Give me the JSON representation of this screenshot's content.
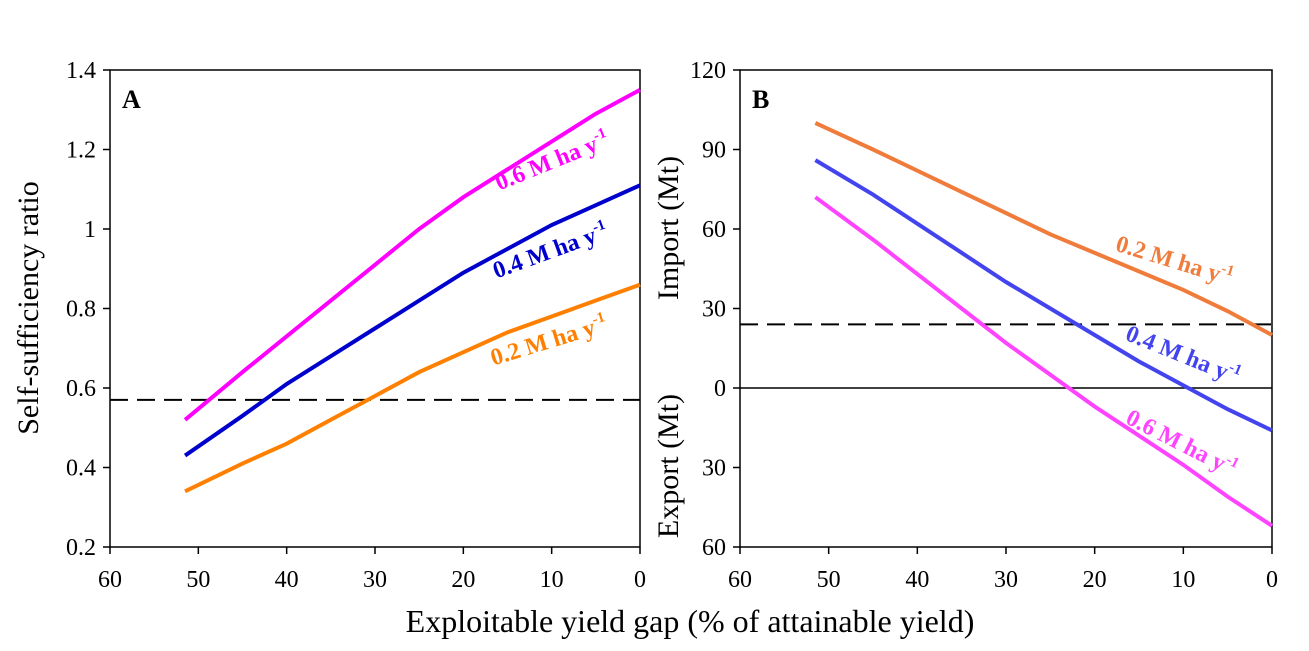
{
  "chart_data": [
    {
      "type": "line",
      "panel": "A",
      "ylabel": "Self-sufficiency ratio",
      "xlabel": "Exploitable yield gap (% of attainable yield)",
      "x": [
        51.5,
        45,
        40,
        35,
        30,
        25,
        20,
        15,
        10,
        5,
        0
      ],
      "xlim": [
        60,
        0
      ],
      "xticks": [
        60,
        50,
        40,
        30,
        20,
        10,
        0
      ],
      "ylim": [
        0.2,
        1.4
      ],
      "yticks": [
        0.2,
        0.4,
        0.6,
        0.8,
        1.0,
        1.2,
        1.4
      ],
      "reference_lines": [
        {
          "value": 0.57,
          "style": "dashed"
        }
      ],
      "series": [
        {
          "name": "0.6 M ha y",
          "name_sup": "-1",
          "color": "#ff00ff",
          "values": [
            0.52,
            0.64,
            0.73,
            0.82,
            0.91,
            1.0,
            1.08,
            1.15,
            1.22,
            1.29,
            1.35
          ]
        },
        {
          "name": "0.4 M ha y",
          "name_sup": "-1",
          "color": "#0000cc",
          "values": [
            0.43,
            0.53,
            0.61,
            0.68,
            0.75,
            0.82,
            0.89,
            0.95,
            1.01,
            1.06,
            1.11
          ]
        },
        {
          "name": "0.2 M ha y",
          "name_sup": "-1",
          "color": "#ff8000",
          "values": [
            0.34,
            0.41,
            0.46,
            0.52,
            0.58,
            0.64,
            0.69,
            0.74,
            0.78,
            0.82,
            0.86
          ]
        }
      ]
    },
    {
      "type": "line",
      "panel": "B",
      "ylabel_top": "Import (Mt)",
      "ylabel_bottom": "Export (Mt)",
      "x": [
        51.5,
        45,
        40,
        35,
        30,
        25,
        20,
        15,
        10,
        5,
        0
      ],
      "xlim": [
        60,
        0
      ],
      "xticks": [
        60,
        50,
        40,
        30,
        20,
        10,
        0
      ],
      "ylim": [
        -60,
        120
      ],
      "yticks": [
        {
          "value": -60,
          "label": "60"
        },
        {
          "value": -30,
          "label": "30"
        },
        0,
        30,
        60,
        90,
        120
      ],
      "reference_lines": [
        {
          "value": 24,
          "style": "dashed"
        },
        {
          "value": 0,
          "style": "solid"
        }
      ],
      "series": [
        {
          "name": "0.2 M ha y",
          "name_sup": "-1",
          "color": "#f07c3c",
          "values": [
            100,
            90,
            82,
            74,
            66,
            58,
            51,
            44,
            37,
            29,
            20
          ]
        },
        {
          "name": "0.4 M ha y",
          "name_sup": "-1",
          "color": "#4444ee",
          "values": [
            86,
            73,
            62,
            51,
            40,
            30,
            20,
            10,
            1,
            -8,
            -16
          ]
        },
        {
          "name": "0.6 M ha y",
          "name_sup": "-1",
          "color": "#ff44ff",
          "values": [
            72,
            56,
            43,
            30,
            17,
            5,
            -7,
            -18,
            -29,
            -41,
            -52
          ]
        }
      ]
    }
  ]
}
